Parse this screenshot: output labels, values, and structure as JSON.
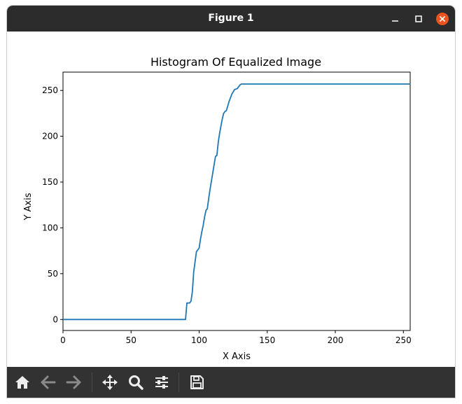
{
  "window": {
    "title": "Figure 1"
  },
  "toolbar": {
    "icons": [
      "home-icon",
      "back-icon",
      "forward-icon",
      "pan-icon",
      "zoom-icon",
      "configure-subplots-icon",
      "save-icon"
    ]
  },
  "chart_data": {
    "type": "line",
    "title": "Histogram Of Equalized Image",
    "xlabel": "X Axis",
    "ylabel": "Y Axis",
    "xlim": [
      0,
      255
    ],
    "ylim": [
      -12,
      270
    ],
    "xticks": [
      "0",
      "50",
      "100",
      "150",
      "200",
      "250"
    ],
    "yticks": [
      "0",
      "50",
      "100",
      "150",
      "200",
      "250"
    ],
    "grid": false,
    "line_color": "#1f77b4",
    "series": [
      {
        "x": [
          0,
          90,
          91,
          92,
          93,
          94,
          95,
          96,
          98,
          100,
          101,
          102,
          103,
          104,
          105,
          106,
          107,
          108,
          110,
          112,
          113,
          114,
          115,
          116,
          117,
          118,
          119,
          120,
          121,
          122,
          123,
          124,
          126,
          128,
          129,
          130,
          131,
          132,
          133,
          134,
          135,
          255
        ],
        "y": [
          0,
          0,
          18,
          18,
          18,
          20,
          30,
          52,
          74,
          78,
          88,
          96,
          103,
          112,
          119,
          121,
          132,
          142,
          160,
          178,
          179,
          193,
          203,
          211,
          219,
          225,
          227,
          228,
          233,
          238,
          242,
          246,
          251,
          252,
          254,
          256,
          257,
          257,
          257,
          257,
          257,
          257
        ]
      }
    ]
  }
}
